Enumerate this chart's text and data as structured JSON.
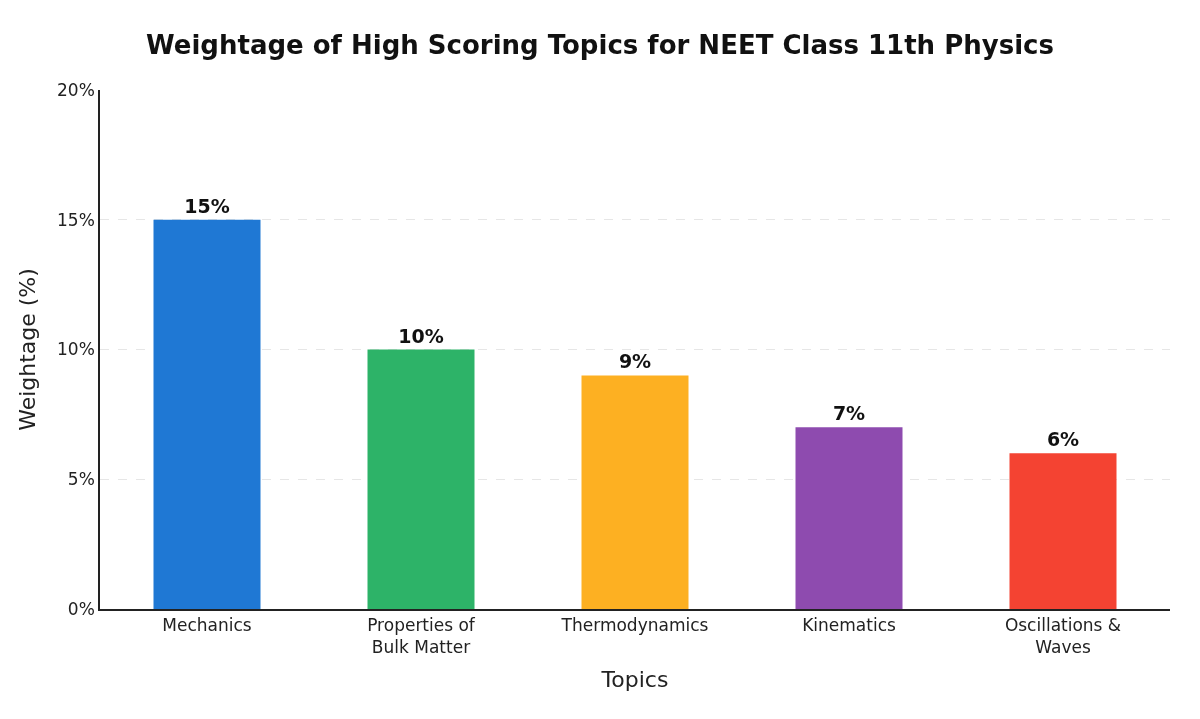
{
  "chart_data": {
    "type": "bar",
    "title": "Weightage of High Scoring Topics for NEET Class 11th Physics",
    "xlabel": "Topics",
    "ylabel": "Weightage (%)",
    "categories": [
      "Mechanics",
      "Properties of\nBulk Matter",
      "Thermodynamics",
      "Kinematics",
      "Oscillations &\nWaves"
    ],
    "values": [
      15,
      10,
      9,
      7,
      6
    ],
    "colors": [
      "#1f78d4",
      "#2db368",
      "#fdb022",
      "#8e4baf",
      "#f44332"
    ],
    "value_labels": [
      "15%",
      "10%",
      "9%",
      "7%",
      "6%"
    ],
    "ylim": [
      0,
      20
    ],
    "yticks": [
      {
        "value": 0,
        "label": "0%"
      },
      {
        "value": 5,
        "label": "5%"
      },
      {
        "value": 10,
        "label": "10%"
      },
      {
        "value": 15,
        "label": "15%"
      },
      {
        "value": 20,
        "label": "20%"
      }
    ],
    "grid": "y"
  }
}
